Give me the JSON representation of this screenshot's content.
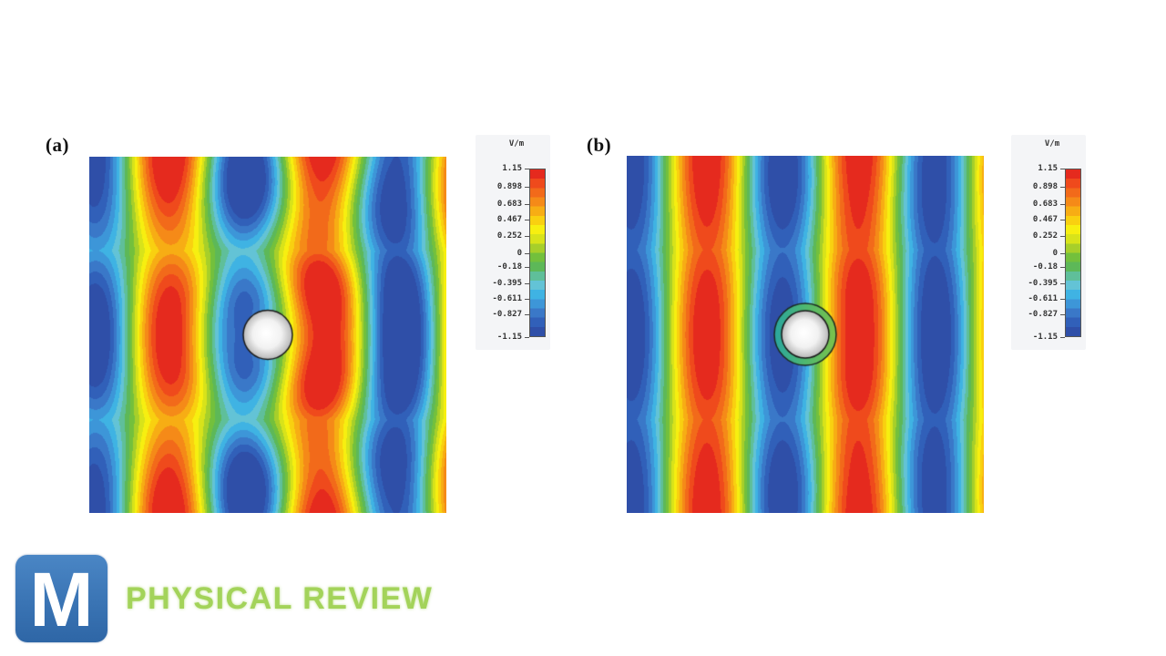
{
  "figure": {
    "panels": [
      {
        "id": "a",
        "label": "(a)",
        "description": "Electric field distribution around a bare cylindrical scatterer; strong scattering distortion of plane wavefronts"
      },
      {
        "id": "b",
        "label": "(b)",
        "description": "Electric field distribution around a cloaked (coated) cylinder; wavefronts nearly undisturbed"
      }
    ],
    "colorbar": {
      "unit": "V/m",
      "ticks": [
        "1.15",
        "0.898",
        "0.683",
        "0.467",
        "0.252",
        "0",
        "-0.18",
        "-0.395",
        "-0.611",
        "-0.827",
        "-1.15"
      ]
    }
  },
  "branding": {
    "logo_letter": "M",
    "name": "PHYSICAL REVIEW",
    "logo_color": "#3a74b4",
    "name_color": "#a3d35a"
  },
  "chart_data": [
    {
      "type": "heatmap",
      "title": "(a)",
      "quantity": "Electric field E",
      "unit": "V/m",
      "colormap": "jet",
      "vmin": -1.15,
      "vmax": 1.15,
      "colorbar_ticks": [
        1.15,
        0.898,
        0.683,
        0.467,
        0.252,
        0,
        -0.18,
        -0.395,
        -0.611,
        -0.827,
        -1.15
      ],
      "field_pattern": "vertical plane-wave bands (about 2 wavelengths across) distorted by a central circular scatterer; red maxima split above/below the cylinder, blue minima pinched at cylinder height",
      "band_sequence_left_to_right": [
        "blue",
        "cyan",
        "green",
        "yellow",
        "red",
        "yellow",
        "green",
        "cyan",
        "blue",
        "cyan",
        "green",
        "yellow",
        "orange/red",
        "yellow",
        "green",
        "cyan",
        "blue",
        "cyan",
        "green",
        "yellow",
        "orange"
      ],
      "scatterer": {
        "shape": "circle",
        "center_frac": [
          0.5,
          0.5
        ],
        "radius_frac": 0.07,
        "coating": false
      }
    },
    {
      "type": "heatmap",
      "title": "(b)",
      "quantity": "Electric field E",
      "unit": "V/m",
      "colormap": "jet",
      "vmin": -1.15,
      "vmax": 1.15,
      "colorbar_ticks": [
        1.15,
        0.898,
        0.683,
        0.467,
        0.252,
        0,
        -0.18,
        -0.395,
        -0.611,
        -0.827,
        -1.15
      ],
      "field_pattern": "nearly straight vertical plane-wave bands with only slight modulation; cloaked cylinder leaves the field largely undisturbed",
      "band_sequence_left_to_right": [
        "blue",
        "cyan",
        "green",
        "yellow",
        "red",
        "yellow",
        "green",
        "cyan",
        "blue",
        "cyan",
        "green",
        "yellow",
        "red",
        "yellow",
        "green",
        "cyan",
        "blue",
        "cyan",
        "green",
        "yellow",
        "orange"
      ],
      "scatterer": {
        "shape": "circle",
        "center_frac": [
          0.5,
          0.5
        ],
        "radius_frac": 0.067,
        "coating": true,
        "coating_outer_radius_frac": 0.087
      }
    }
  ]
}
